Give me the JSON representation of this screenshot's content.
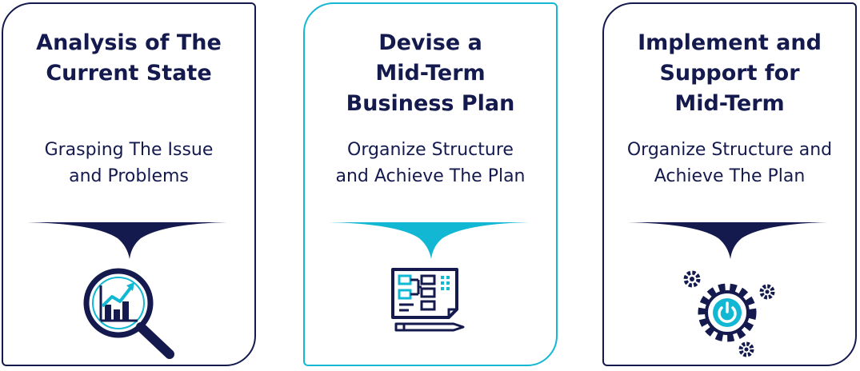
{
  "cards": [
    {
      "title_lines": [
        "Analysis of The",
        "Current State"
      ],
      "subtitle_lines": [
        "Grasping The Issue",
        "and Problems"
      ],
      "icon": "magnifier-chart-icon",
      "color": "#141a4e"
    },
    {
      "title_lines": [
        "Devise a",
        "Mid-Term",
        "Business Plan"
      ],
      "subtitle_lines": [
        "Organize Structure",
        "and Achieve The Plan"
      ],
      "icon": "blueprint-pencil-icon",
      "color": "#12b8d3"
    },
    {
      "title_lines": [
        "Implement and",
        "Support for",
        "Mid-Term"
      ],
      "subtitle_lines": [
        "Organize Structure and",
        "Achieve The Plan"
      ],
      "icon": "gears-power-icon",
      "color": "#141a4e"
    }
  ],
  "colors": {
    "navy": "#141a4e",
    "teal": "#12b8d3"
  }
}
